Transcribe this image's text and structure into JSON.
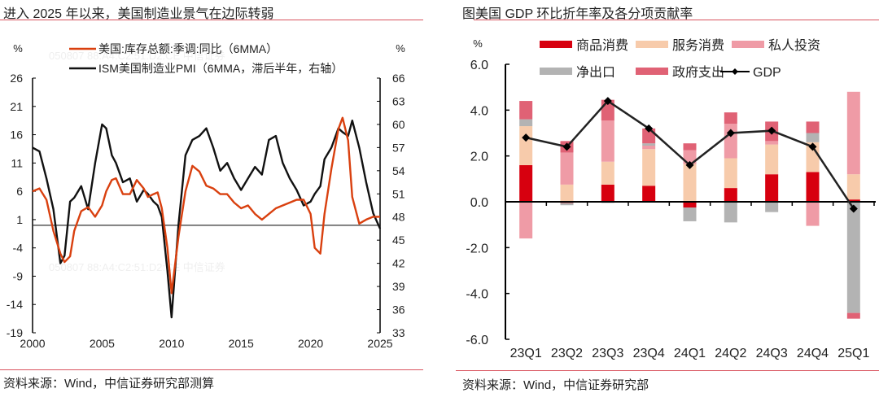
{
  "colors": {
    "inventory": "#d9400f",
    "pmi": "#111111",
    "goods": "#d7000f",
    "services": "#f7cbab",
    "private_investment": "#ef9ba6",
    "net_exports": "#b3b3b3",
    "government": "#e06275",
    "gdp": "#222222",
    "rule": "#d9545f"
  },
  "left": {
    "title": "进入 2025 年以来，美国制造业景气在边际转弱",
    "source": "资料来源：Wind，中信证券研究部测算",
    "watermark": "050807  88:A4:C2:51:D2:CE  中信证券"
  },
  "right": {
    "title": "图美国 GDP 环比折年率及各分项贡献率",
    "source": "资料来源：Wind，中信证券研究部"
  },
  "chart_data": [
    {
      "type": "line",
      "title": "进入 2025 年以来，美国制造业景气在边际转弱",
      "ylabel_left": "%",
      "ylabel_right": "%",
      "ylim_left": [
        -19,
        26
      ],
      "ylim_right": [
        33,
        66
      ],
      "yticks_left": [
        "26",
        "21",
        "16",
        "11",
        "6",
        "1",
        "-4",
        "-9",
        "-14",
        "-19"
      ],
      "yticks_right": [
        "66",
        "63",
        "60",
        "57",
        "54",
        "51",
        "48",
        "45",
        "42",
        "39",
        "36",
        "33"
      ],
      "xlim": [
        2000,
        2025
      ],
      "xticks": [
        "2000",
        "2005",
        "2010",
        "2015",
        "2020",
        "2025"
      ],
      "reference_line_y_left": 0,
      "legend": "top-left",
      "series": [
        {
          "name": "美国:库存总额:季调:同比（6MMA）",
          "axis": "left",
          "x": [
            2000.0,
            2000.5,
            2001.0,
            2001.5,
            2002.0,
            2002.3,
            2002.7,
            2003.0,
            2003.5,
            2004.0,
            2004.5,
            2005.0,
            2005.3,
            2005.7,
            2006.0,
            2006.5,
            2007.0,
            2007.5,
            2008.0,
            2008.3,
            2008.7,
            2009.0,
            2009.3,
            2009.7,
            2010.0,
            2010.5,
            2011.0,
            2011.5,
            2012.0,
            2012.5,
            2013.0,
            2013.5,
            2014.0,
            2014.5,
            2015.0,
            2015.5,
            2016.0,
            2016.5,
            2017.0,
            2017.5,
            2018.0,
            2018.5,
            2019.0,
            2019.5,
            2020.0,
            2020.3,
            2020.7,
            2021.0,
            2021.5,
            2022.0,
            2022.3,
            2022.7,
            2023.0,
            2023.5,
            2024.0,
            2024.5,
            2025.0
          ],
          "values": [
            6.0,
            6.5,
            4.5,
            -1.0,
            -5.0,
            -6.5,
            -5.5,
            -1.0,
            2.5,
            3.2,
            1.5,
            3.5,
            6.0,
            8.0,
            8.3,
            5.5,
            5.5,
            8.0,
            6.5,
            5.0,
            5.5,
            5.8,
            3.0,
            -4.0,
            -12.0,
            -2.0,
            6.0,
            10.5,
            9.5,
            7.0,
            6.5,
            5.5,
            5.5,
            4.0,
            3.0,
            3.5,
            2.0,
            1.0,
            2.0,
            3.0,
            3.5,
            4.0,
            4.5,
            4.5,
            2.0,
            -4.0,
            -5.0,
            2.0,
            10.0,
            17.0,
            19.0,
            15.0,
            5.0,
            0.3,
            1.0,
            1.5,
            1.5
          ]
        },
        {
          "name": "ISM美国制造业PMI（6MMA，滞后半年，右轴）",
          "axis": "right",
          "x": [
            2000.0,
            2000.5,
            2001.0,
            2001.5,
            2002.0,
            2002.3,
            2002.7,
            2003.0,
            2003.5,
            2004.0,
            2004.5,
            2005.0,
            2005.3,
            2005.7,
            2006.0,
            2006.5,
            2007.0,
            2007.5,
            2008.0,
            2008.3,
            2008.7,
            2009.0,
            2009.3,
            2009.7,
            2010.0,
            2010.5,
            2011.0,
            2011.5,
            2012.0,
            2012.5,
            2013.0,
            2013.5,
            2014.0,
            2014.5,
            2015.0,
            2015.5,
            2016.0,
            2016.5,
            2017.0,
            2017.5,
            2018.0,
            2018.5,
            2019.0,
            2019.5,
            2020.0,
            2020.3,
            2020.7,
            2021.0,
            2021.5,
            2022.0,
            2022.3,
            2022.7,
            2023.0,
            2023.5,
            2024.0,
            2024.5,
            2025.0
          ],
          "values": [
            57.0,
            56.5,
            53.0,
            49.0,
            42.0,
            43.0,
            50.0,
            50.5,
            52.0,
            49.0,
            55.0,
            60.0,
            59.5,
            56.0,
            55.0,
            52.5,
            53.0,
            50.0,
            51.5,
            51.0,
            50.0,
            49.5,
            48.0,
            41.0,
            35.0,
            47.0,
            56.0,
            58.0,
            58.5,
            59.5,
            57.0,
            54.0,
            55.0,
            53.0,
            51.5,
            53.0,
            54.5,
            53.5,
            58.0,
            58.5,
            55.0,
            53.0,
            51.5,
            49.5,
            50.0,
            51.0,
            52.0,
            55.5,
            57.0,
            59.5,
            59.0,
            58.5,
            60.5,
            57.0,
            52.5,
            48.5,
            46.5
          ]
        }
      ]
    },
    {
      "type": "bar",
      "stacked": true,
      "title": "图美国 GDP 环比折年率及各分项贡献率",
      "ylabel": "%",
      "ylim": [
        -6.0,
        6.0
      ],
      "yticks": [
        "6.0",
        "4.0",
        "2.0",
        "0.0",
        "-2.0",
        "-4.0",
        "-6.0"
      ],
      "categories": [
        "23Q1",
        "23Q2",
        "23Q3",
        "23Q4",
        "24Q1",
        "24Q2",
        "24Q3",
        "24Q4",
        "25Q1"
      ],
      "legend": "top",
      "series": [
        {
          "name": "商品消费",
          "key": "goods",
          "values": [
            1.6,
            -0.05,
            0.75,
            0.7,
            -0.25,
            0.6,
            1.2,
            1.3,
            0.1
          ]
        },
        {
          "name": "服务消费",
          "key": "services",
          "values": [
            1.7,
            0.75,
            1.0,
            1.6,
            1.65,
            1.3,
            1.3,
            1.3,
            1.1
          ]
        },
        {
          "name": "私人投资",
          "key": "private_investment",
          "values": [
            -1.6,
            1.4,
            1.8,
            0.15,
            0.6,
            1.5,
            0.15,
            -1.05,
            3.6
          ]
        },
        {
          "name": "净出口",
          "key": "net_exports",
          "values": [
            0.3,
            -0.1,
            -0.05,
            0.1,
            -0.6,
            -0.9,
            -0.45,
            0.4,
            -4.85
          ]
        },
        {
          "name": "政府支出",
          "key": "government",
          "values": [
            0.8,
            0.5,
            0.9,
            0.65,
            0.3,
            0.5,
            0.85,
            0.5,
            -0.25
          ]
        }
      ],
      "line": {
        "name": "GDP",
        "values": [
          2.8,
          2.4,
          4.4,
          3.2,
          1.6,
          3.0,
          3.1,
          2.4,
          -0.3
        ]
      }
    }
  ]
}
